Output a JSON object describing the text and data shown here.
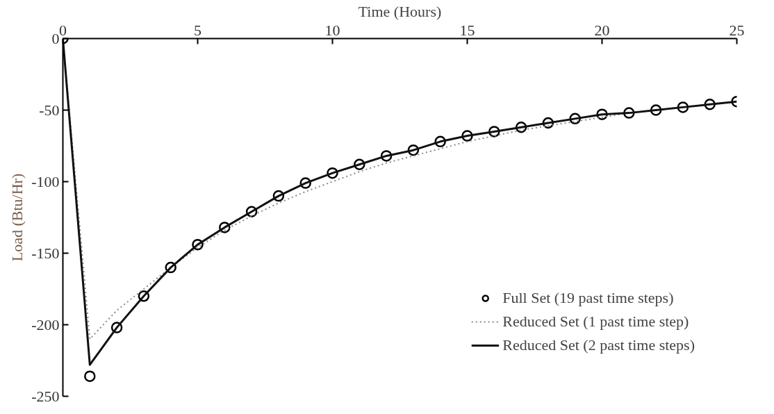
{
  "chart_data": {
    "type": "line",
    "xlabel": "Time (Hours)",
    "ylabel": "Load (Btu/Hr)",
    "x": [
      0,
      1,
      2,
      3,
      4,
      5,
      6,
      7,
      8,
      9,
      10,
      11,
      12,
      13,
      14,
      15,
      16,
      17,
      18,
      19,
      20,
      21,
      22,
      23,
      24,
      25
    ],
    "xlim": [
      0,
      25
    ],
    "xticks": [
      0,
      5,
      10,
      15,
      20,
      25
    ],
    "ylim": [
      -250,
      0
    ],
    "yticks": [
      0,
      -50,
      -100,
      -150,
      -200,
      -250
    ],
    "grid": false,
    "legend": "bottom right",
    "series": [
      {
        "name": "Full Set (19 past time steps)",
        "type": "scatter",
        "marker": "circle",
        "color": "#000000",
        "values": [
          0,
          -236,
          -202,
          -180,
          -160,
          -144,
          -132,
          -121,
          -110,
          -101,
          -94,
          -88,
          -82,
          -78,
          -72,
          -68,
          -65,
          -62,
          -59,
          -56,
          -53,
          -52,
          -50,
          -48,
          -46,
          -44
        ]
      },
      {
        "name": "Reduced Set (1 past time step)",
        "line_style": "dotted",
        "color": "#888888",
        "values": [
          0,
          -210,
          -190,
          -175,
          -160,
          -146,
          -134,
          -124,
          -115,
          -107,
          -100,
          -93,
          -87,
          -82,
          -77,
          -72,
          -68,
          -64,
          -61,
          -58,
          -55,
          -52,
          -50,
          -48,
          -46,
          -44
        ]
      },
      {
        "name": "Reduced Set (2 past time steps)",
        "line_style": "solid",
        "color": "#111111",
        "values": [
          0,
          -228,
          -202,
          -180,
          -160,
          -144,
          -132,
          -121,
          -110,
          -101,
          -94,
          -88,
          -82,
          -78,
          -72,
          -68,
          -65,
          -62,
          -59,
          -56,
          -53,
          -52,
          -50,
          -48,
          -46,
          -44
        ]
      }
    ]
  }
}
